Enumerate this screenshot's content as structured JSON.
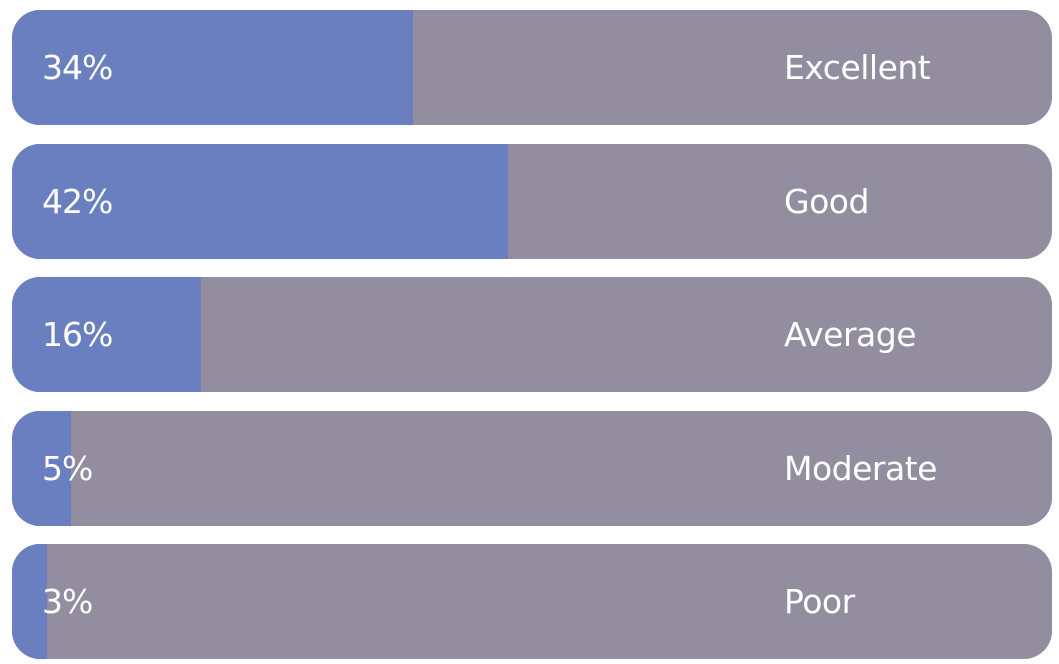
{
  "chart_data": {
    "type": "bar",
    "orientation": "horizontal",
    "categories": [
      "Excellent",
      "Good",
      "Average",
      "Moderate",
      "Poor"
    ],
    "values": [
      34,
      42,
      16,
      5,
      3
    ],
    "value_labels": [
      "34%",
      "42%",
      "16%",
      "5%",
      "3%"
    ],
    "xlim": [
      0,
      100
    ],
    "grid": false,
    "legend": "none",
    "colors": {
      "fill": "#6a7fbf",
      "track": "#928d9f",
      "text": "#ffffff"
    }
  }
}
